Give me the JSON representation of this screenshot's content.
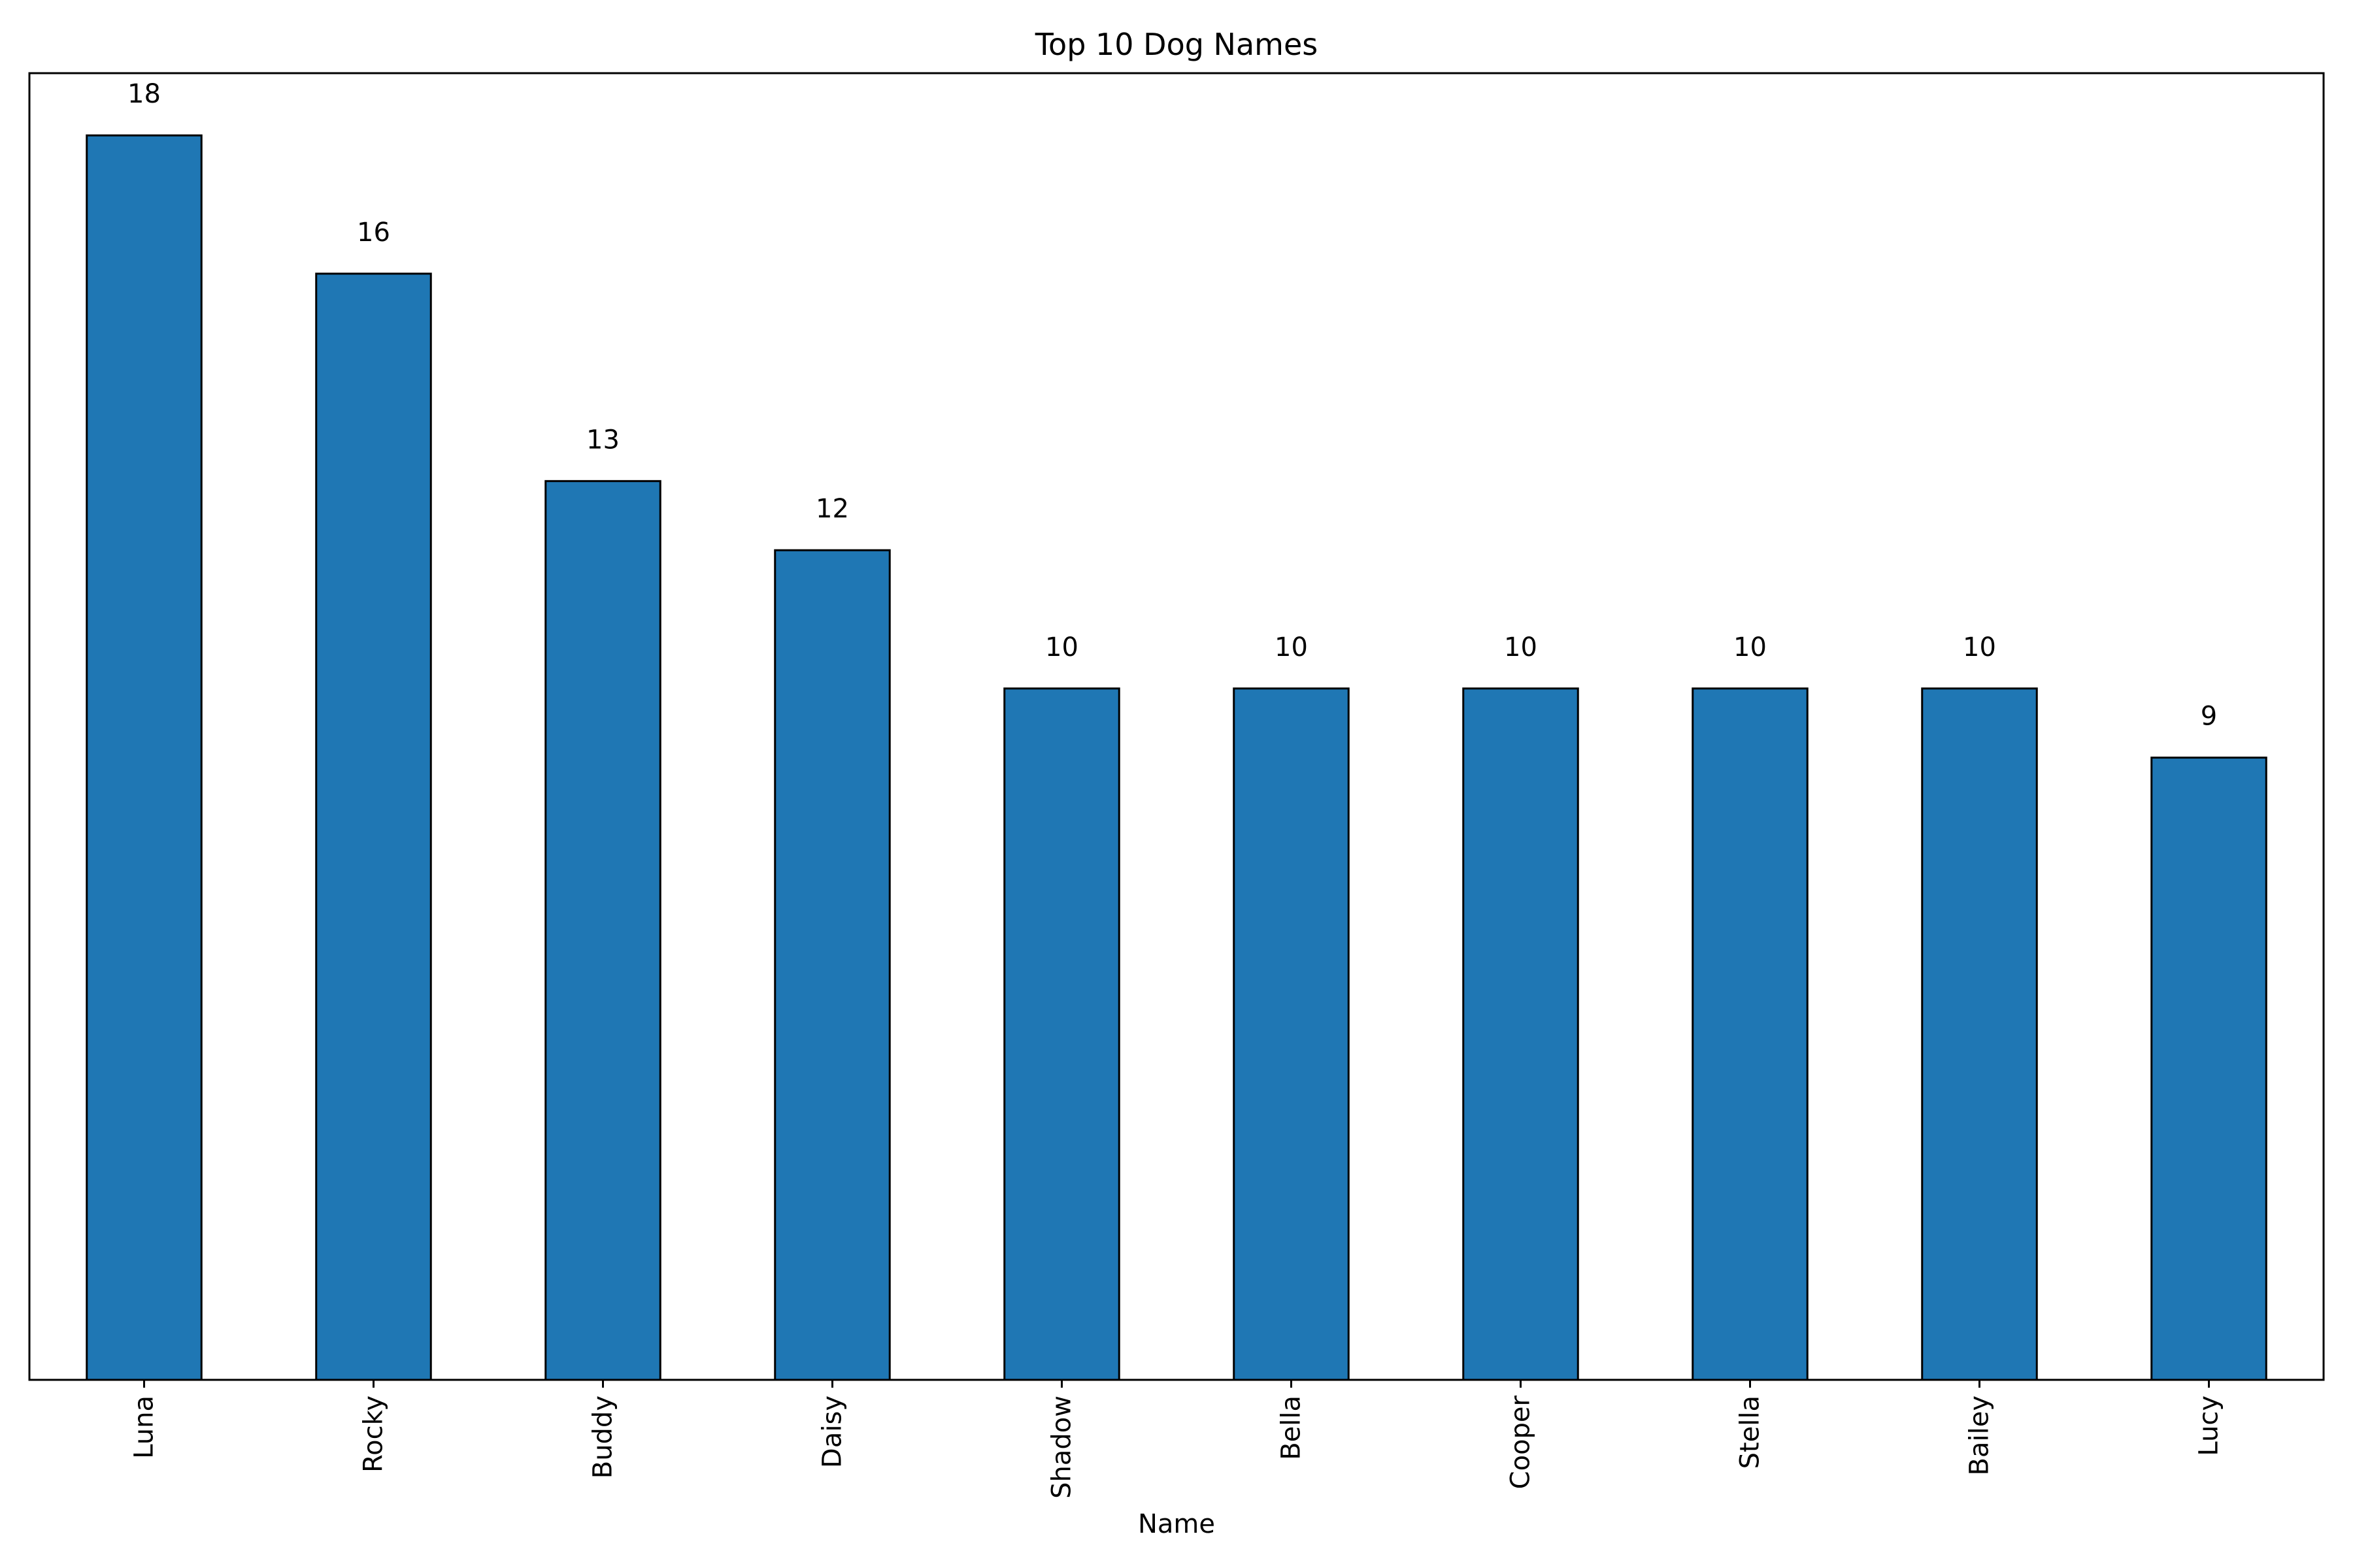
{
  "chart_data": {
    "type": "bar",
    "title": "Top 10 Dog Names",
    "xlabel": "Name",
    "ylabel": "",
    "categories": [
      "Luna",
      "Rocky",
      "Buddy",
      "Daisy",
      "Shadow",
      "Bella",
      "Cooper",
      "Stella",
      "Bailey",
      "Lucy"
    ],
    "values": [
      18,
      16,
      13,
      12,
      10,
      10,
      10,
      10,
      10,
      9
    ],
    "ylim": [
      0,
      18.9
    ],
    "grid": false,
    "bar_color": "#1f77b4",
    "bar_edge_color": "#000000",
    "show_value_labels": true,
    "y_ticks_visible": false
  }
}
